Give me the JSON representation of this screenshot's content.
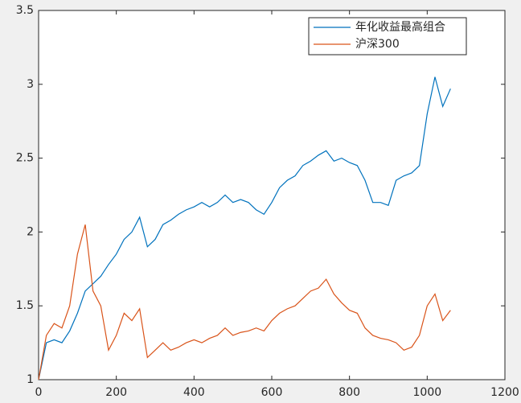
{
  "chart_data": {
    "type": "line",
    "x": [
      0,
      20,
      40,
      60,
      80,
      100,
      120,
      140,
      160,
      180,
      200,
      220,
      240,
      260,
      280,
      300,
      320,
      340,
      360,
      380,
      400,
      420,
      440,
      460,
      480,
      500,
      520,
      540,
      560,
      580,
      600,
      620,
      640,
      660,
      680,
      700,
      720,
      740,
      760,
      780,
      800,
      820,
      840,
      860,
      880,
      900,
      920,
      940,
      960,
      980,
      1000,
      1020,
      1040,
      1060
    ],
    "series": [
      {
        "name": "年化收益最高组合",
        "color": "#0072bd",
        "values": [
          1.0,
          1.25,
          1.27,
          1.25,
          1.33,
          1.45,
          1.6,
          1.65,
          1.7,
          1.78,
          1.85,
          1.95,
          2.0,
          2.1,
          1.9,
          1.95,
          2.05,
          2.08,
          2.12,
          2.15,
          2.17,
          2.2,
          2.17,
          2.2,
          2.25,
          2.2,
          2.22,
          2.2,
          2.15,
          2.12,
          2.2,
          2.3,
          2.35,
          2.38,
          2.45,
          2.48,
          2.52,
          2.55,
          2.48,
          2.5,
          2.47,
          2.45,
          2.35,
          2.2,
          2.2,
          2.18,
          2.35,
          2.38,
          2.4,
          2.45,
          2.8,
          3.05,
          2.85,
          2.97
        ]
      },
      {
        "name": "沪深300",
        "color": "#d95319",
        "values": [
          1.0,
          1.3,
          1.38,
          1.35,
          1.5,
          1.85,
          2.05,
          1.6,
          1.5,
          1.2,
          1.3,
          1.45,
          1.4,
          1.48,
          1.15,
          1.2,
          1.25,
          1.2,
          1.22,
          1.25,
          1.27,
          1.25,
          1.28,
          1.3,
          1.35,
          1.3,
          1.32,
          1.33,
          1.35,
          1.33,
          1.4,
          1.45,
          1.48,
          1.5,
          1.55,
          1.6,
          1.62,
          1.68,
          1.58,
          1.52,
          1.47,
          1.45,
          1.35,
          1.3,
          1.28,
          1.27,
          1.25,
          1.2,
          1.22,
          1.3,
          1.5,
          1.58,
          1.4,
          1.47
        ]
      }
    ],
    "xlim": [
      0,
      1200
    ],
    "xticks": [
      0,
      200,
      400,
      600,
      800,
      1000,
      1200
    ],
    "ylim": [
      1,
      3.5
    ],
    "yticks": [
      1,
      1.5,
      2,
      2.5,
      3,
      3.5
    ],
    "grid": false,
    "legend": "northeast"
  }
}
